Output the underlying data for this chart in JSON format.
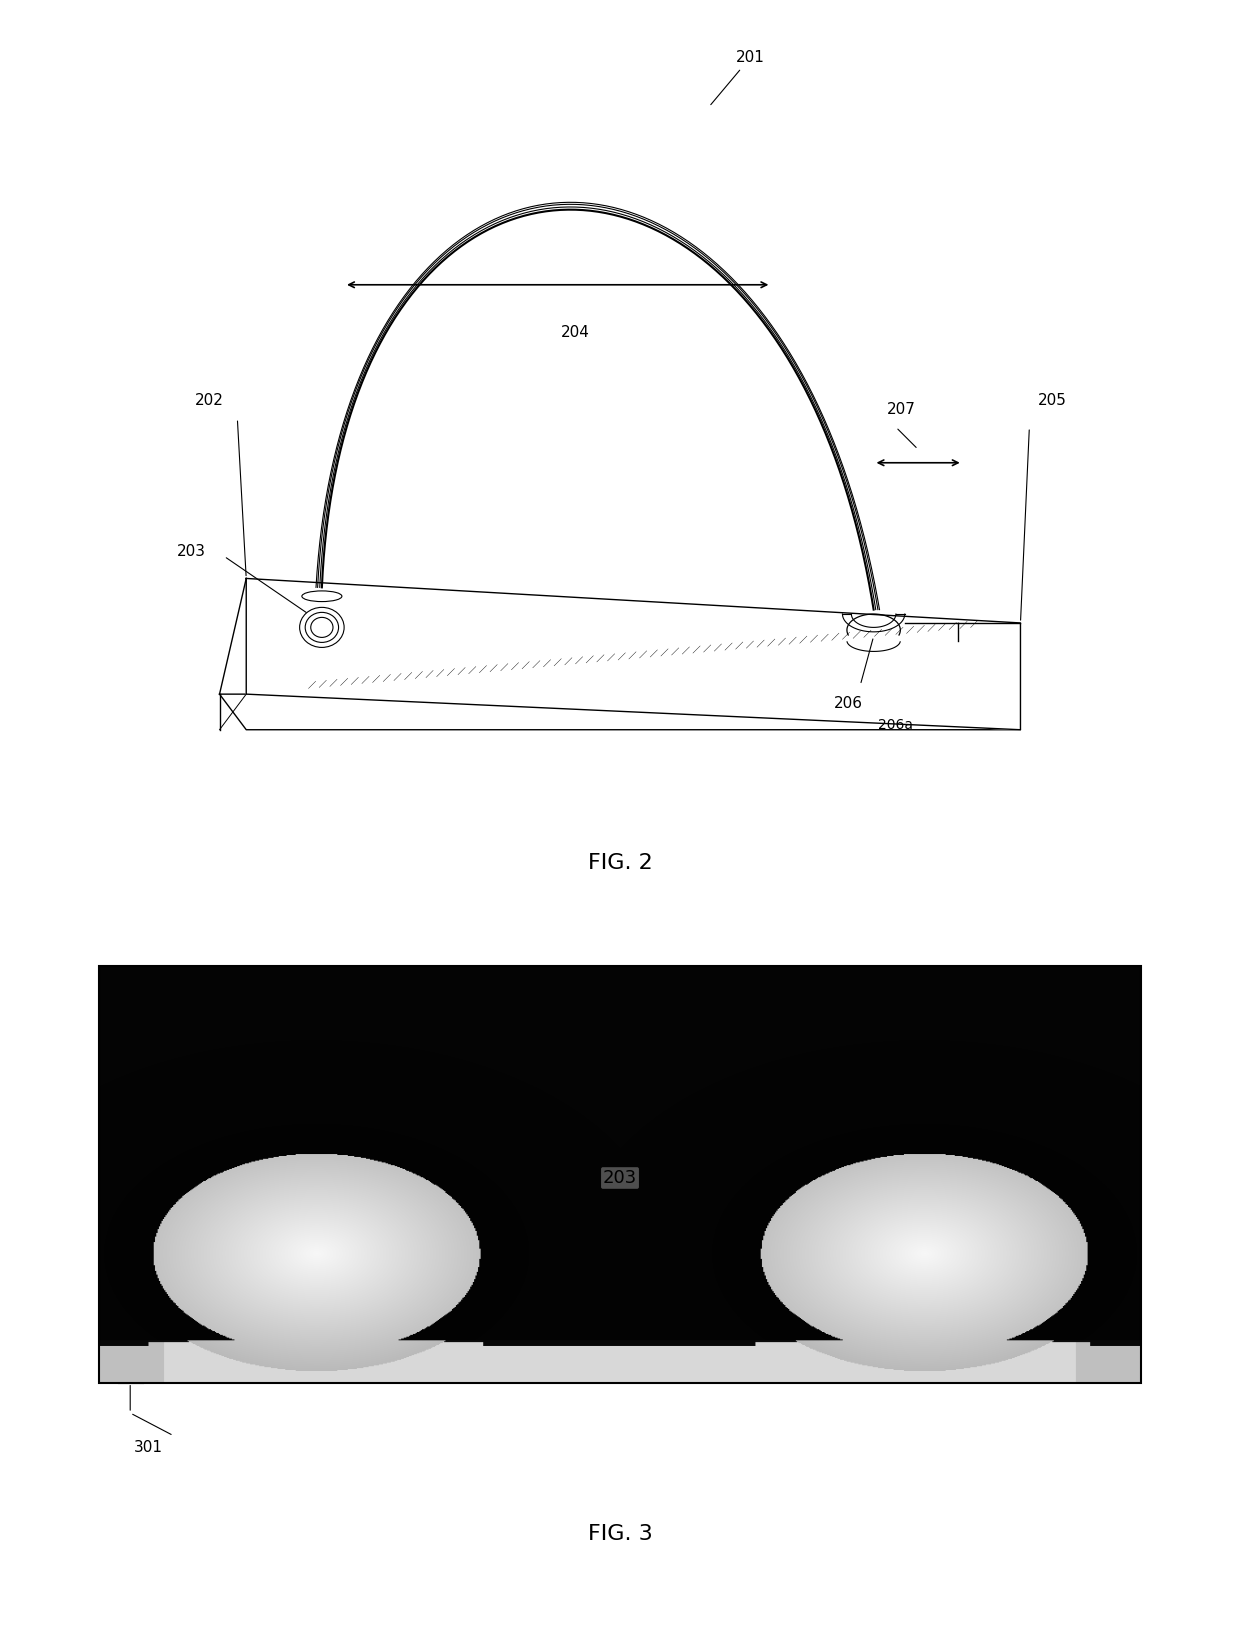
{
  "fig_width": 12.4,
  "fig_height": 16.48,
  "bg_color": "#ffffff",
  "fig2": {
    "title": "FIG. 2",
    "label_201": "201",
    "label_202": "202",
    "label_203": "203",
    "label_204": "204",
    "label_205": "205",
    "label_206": "206",
    "label_206a": "206a",
    "label_207": "207"
  },
  "fig3": {
    "title": "FIG. 3",
    "label_203": "203",
    "label_301": "301"
  }
}
